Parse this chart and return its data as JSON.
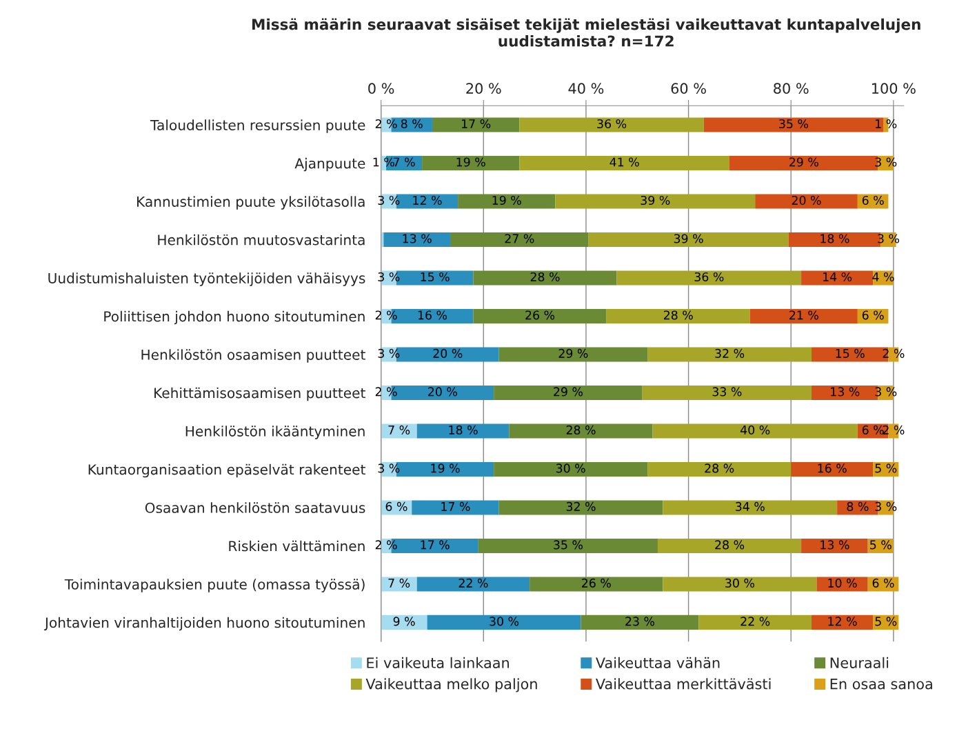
{
  "chart_data": {
    "type": "bar",
    "orientation": "horizontal",
    "stacked": true,
    "title": "Missä määrin seuraavat sisäiset tekijät mielestäsi vaikeuttavat kuntapalvelujen uudistamista? n=172",
    "categories": [
      "Taloudellisten resurssien puute",
      "Ajanpuute",
      "Kannustimien puute yksilötasolla",
      "Henkilöstön muutosvastarinta",
      "Uudistumishaluisten työntekijöiden vähäisyys",
      "Poliittisen johdon huono sitoutuminen",
      "Henkilöstön osaamisen puutteet",
      "Kehittämisosaamisen puutteet",
      "Henkilöstön ikääntyminen",
      "Kuntaorganisaation epäselvät rakenteet",
      "Osaavan henkilöstön saatavuus",
      "Riskien välttäminen",
      "Toimintavapauksien puute (omassa työssä)",
      "Johtavien viranhaltijoiden huono sitoutuminen"
    ],
    "series": [
      {
        "name": "Ei vaikeuta lainkaan",
        "color": "#a6dcf0",
        "values": [
          2,
          1,
          3,
          0.5,
          3,
          2,
          3,
          2,
          7,
          3,
          6,
          2,
          7,
          9
        ],
        "value_labels": [
          "2 %",
          "1 %",
          "3 %",
          null,
          "3 %",
          "2 %",
          "3 %",
          "2 %",
          "7 %",
          "3 %",
          "6 %",
          "2 %",
          "7 %",
          "9 %"
        ]
      },
      {
        "name": "Vaikeuttaa vähän",
        "color": "#2a8fbd",
        "values": [
          8,
          7,
          12,
          13,
          15,
          16,
          20,
          20,
          18,
          19,
          17,
          17,
          22,
          30
        ],
        "value_labels": [
          "8 %",
          "7 %",
          "12 %",
          "13 %",
          "15 %",
          "16 %",
          "20 %",
          "20 %",
          "18 %",
          "19 %",
          "17 %",
          "17 %",
          "22 %",
          "30 %"
        ]
      },
      {
        "name": "Neuraali",
        "color": "#6a8a35",
        "values": [
          17,
          19,
          19,
          27,
          28,
          26,
          29,
          29,
          28,
          30,
          32,
          35,
          26,
          23
        ],
        "value_labels": [
          "17 %",
          "19 %",
          "19 %",
          "27 %",
          "28 %",
          "26 %",
          "29 %",
          "29 %",
          "28 %",
          "30 %",
          "32 %",
          "35 %",
          "26 %",
          "23 %"
        ]
      },
      {
        "name": "Vaikeuttaa melko paljon",
        "color": "#a8a628",
        "values": [
          36,
          41,
          39,
          39,
          36,
          28,
          32,
          33,
          40,
          28,
          34,
          28,
          30,
          22
        ],
        "value_labels": [
          "36 %",
          "41 %",
          "39 %",
          "39 %",
          "36 %",
          "28 %",
          "32 %",
          "33 %",
          "40 %",
          "28 %",
          "34 %",
          "28 %",
          "30 %",
          "22 %"
        ]
      },
      {
        "name": "Vaikeuttaa merkittävästi",
        "color": "#d35019",
        "values": [
          35,
          29,
          20,
          18,
          14,
          21,
          15,
          13,
          6,
          16,
          8,
          13,
          10,
          12
        ],
        "value_labels": [
          "35 %",
          "29 %",
          "20 %",
          "18 %",
          "14 %",
          "21 %",
          "15 %",
          "13 %",
          "6 %",
          "16 %",
          "8 %",
          "13 %",
          "10 %",
          "12 %"
        ]
      },
      {
        "name": "En osaa sanoa",
        "color": "#d9a01a",
        "values": [
          1,
          3,
          6,
          3,
          4,
          6,
          2,
          3,
          2,
          5,
          3,
          5,
          6,
          5
        ],
        "value_labels": [
          "1 %",
          "3 %",
          "6 %",
          "3 %",
          "4 %",
          "6 %",
          "2 %",
          "3 %",
          "2 %",
          "5 %",
          "3 %",
          "5 %",
          "6 %",
          "5 %"
        ]
      }
    ],
    "xlim": [
      0,
      102
    ],
    "xticks": [
      {
        "value": 0,
        "label": "0 %"
      },
      {
        "value": 20,
        "label": "20 %"
      },
      {
        "value": 40,
        "label": "40 %"
      },
      {
        "value": 60,
        "label": "60 %"
      },
      {
        "value": 80,
        "label": "80 %"
      },
      {
        "value": 100,
        "label": "100 %"
      }
    ],
    "grid": "x",
    "legend": "bottom"
  }
}
